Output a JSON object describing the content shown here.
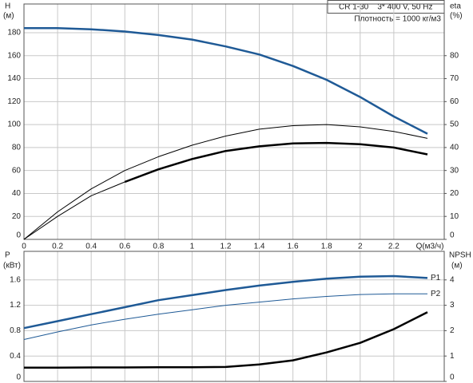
{
  "chart_data": [
    {
      "type": "line",
      "info": [
        "CR 1-30    3* 400 V, 50 Hz",
        "Плотность = 1000 кг/м3"
      ],
      "ylabel": "H",
      "yunit": "(м)",
      "y2label": "eta",
      "y2unit": "(%)",
      "xlabel": "Q(м3/ч)",
      "x": [
        0,
        0.2,
        0.4,
        0.6,
        0.8,
        1.0,
        1.2,
        1.4,
        1.6,
        1.8,
        2.0,
        2.2,
        2.4
      ],
      "xlim": [
        0,
        2.5
      ],
      "xticks": [
        0,
        0.2,
        0.4,
        0.6,
        0.8,
        1,
        1.2,
        1.4,
        1.6,
        1.8,
        2,
        2.2
      ],
      "x_tick_labels": true,
      "ylim": [
        0,
        205
      ],
      "yticks": [
        0,
        20,
        40,
        60,
        80,
        100,
        120,
        140,
        160,
        180
      ],
      "y2lim": [
        0,
        102.5
      ],
      "y2ticks": [
        0,
        10,
        20,
        30,
        40,
        50,
        60,
        70,
        80
      ],
      "grid": true,
      "series": [
        {
          "color": "#1f5a96",
          "width": 2.5,
          "values": [
            184,
            184,
            183,
            181,
            178,
            174,
            168,
            161,
            151,
            139,
            124,
            107,
            92
          ]
        },
        {
          "color": "#000000",
          "width": 1,
          "axis": "y2",
          "values": [
            0,
            12,
            22,
            30,
            36,
            41,
            45,
            48,
            49.5,
            50,
            49,
            47,
            44
          ]
        },
        {
          "color": "#000000",
          "width": 1,
          "axis": "y2",
          "values": [
            0,
            10,
            19,
            25,
            null,
            null,
            null,
            null,
            null,
            null,
            null,
            null,
            null
          ]
        },
        {
          "color": "#000000",
          "width": 2.5,
          "axis": "y2",
          "values": [
            null,
            null,
            null,
            25,
            30.5,
            35,
            38.5,
            40.5,
            41.8,
            42,
            41.4,
            40,
            37
          ]
        }
      ]
    },
    {
      "type": "line",
      "ylabel": "P",
      "yunit": "(кВт)",
      "y2label": "NPSH",
      "y2unit": "(м)",
      "x": [
        0,
        0.2,
        0.4,
        0.6,
        0.8,
        1.0,
        1.2,
        1.4,
        1.6,
        1.8,
        2.0,
        2.2,
        2.4
      ],
      "xlim": [
        0,
        2.5
      ],
      "xticks": [
        0,
        0.2,
        0.4,
        0.6,
        0.8,
        1,
        1.2,
        1.4,
        1.6,
        1.8,
        2,
        2.2
      ],
      "x_tick_labels": false,
      "ylim": [
        0,
        2.05
      ],
      "yticks": [
        0,
        0.4,
        0.8,
        1.2,
        1.6
      ],
      "y2lim": [
        0,
        5.125
      ],
      "y2ticks": [
        0,
        1,
        2,
        3,
        4
      ],
      "grid": true,
      "series": [
        {
          "name": "P1",
          "color": "#1f5a96",
          "width": 2.5,
          "values": [
            0.84,
            0.95,
            1.06,
            1.17,
            1.28,
            1.36,
            1.44,
            1.51,
            1.57,
            1.62,
            1.65,
            1.66,
            1.63
          ]
        },
        {
          "name": "P2",
          "color": "#1f5a96",
          "width": 1,
          "values": [
            0.66,
            0.78,
            0.89,
            0.98,
            1.06,
            1.13,
            1.2,
            1.25,
            1.3,
            1.34,
            1.37,
            1.38,
            1.38
          ]
        },
        {
          "color": "#000000",
          "width": 2.5,
          "axis": "y2",
          "values": [
            0.54,
            0.54,
            0.55,
            0.55,
            0.56,
            0.56,
            0.57,
            0.67,
            0.83,
            1.14,
            1.52,
            2.06,
            2.73
          ]
        }
      ]
    }
  ]
}
